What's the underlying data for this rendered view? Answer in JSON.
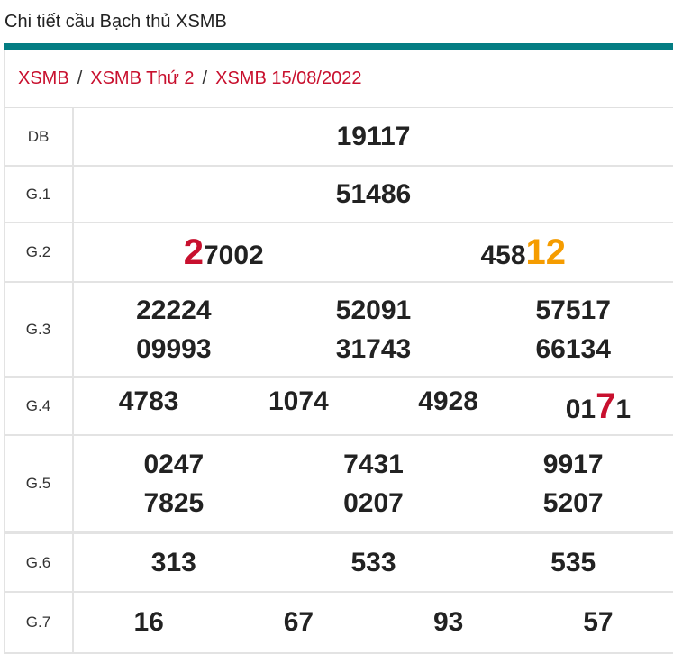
{
  "header": {
    "title": "Chi tiết cầu Bạch thủ XSMB",
    "accent_color": "#047d83"
  },
  "breadcrumb": {
    "items": [
      "XSMB",
      "XSMB Thứ 2",
      "XSMB 15/08/2022"
    ],
    "separator": "/",
    "color": "#c8102e"
  },
  "results": {
    "db": {
      "label": "DB",
      "values": [
        "19117"
      ]
    },
    "g1": {
      "label": "G.1",
      "values": [
        "51486"
      ]
    },
    "g2": {
      "label": "G.2",
      "values": [
        {
          "highlight": "2",
          "rest": "7002",
          "highlight_pos": "start",
          "color": "#c8102e"
        },
        {
          "rest": "458",
          "highlight": "12",
          "highlight_pos": "end",
          "color": "#f59c00"
        }
      ]
    },
    "g3": {
      "label": "G.3",
      "values": [
        "22224",
        "52091",
        "57517",
        "09993",
        "31743",
        "66134"
      ]
    },
    "g4": {
      "label": "G.4",
      "values": [
        "4783",
        "1074",
        "4928",
        {
          "pre": "01",
          "highlight": "7",
          "post": "1",
          "color": "#c8102e"
        }
      ]
    },
    "g5": {
      "label": "G.5",
      "values": [
        "0247",
        "7431",
        "9917",
        "7825",
        "0207",
        "5207"
      ]
    },
    "g6": {
      "label": "G.6",
      "values": [
        "313",
        "533",
        "535"
      ]
    },
    "g7": {
      "label": "G.7",
      "values": [
        "16",
        "67",
        "93",
        "57"
      ]
    }
  }
}
